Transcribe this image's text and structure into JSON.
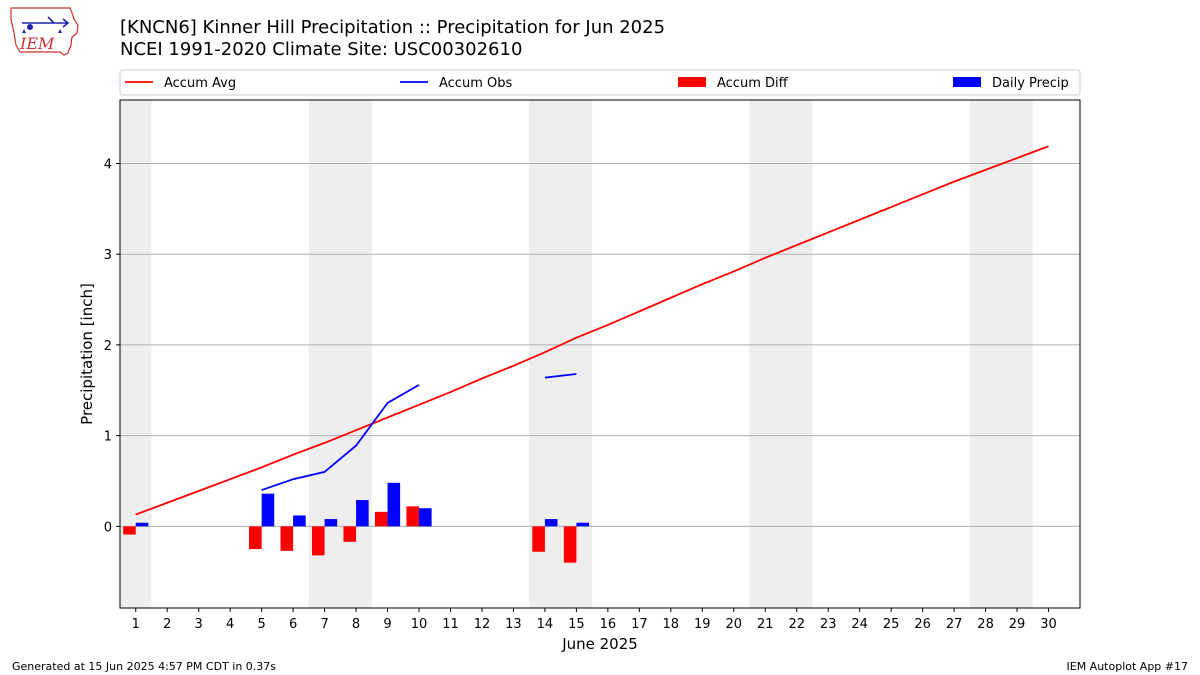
{
  "header": {
    "title": "[KNCN6] Kinner Hill Precipitation :: Precipitation for Jun 2025",
    "subtitle": "NCEI 1991-2020 Climate Site: USC00302610"
  },
  "logo": {
    "text": "IEM",
    "icon": "iem-iowa-weather-logo"
  },
  "footer": {
    "generated": "Generated at 15 Jun 2025 4:57 PM CDT in 0.37s",
    "app": "IEM Autoplot App #17"
  },
  "chart_data": {
    "type": "bar",
    "xlabel": "June 2025",
    "ylabel": "Precipitation [inch]",
    "xlim": [
      0.5,
      31.0
    ],
    "ylim": [
      -0.9,
      4.7
    ],
    "x_ticks": [
      1,
      2,
      3,
      4,
      5,
      6,
      7,
      8,
      9,
      10,
      11,
      12,
      13,
      14,
      15,
      16,
      17,
      18,
      19,
      20,
      21,
      22,
      23,
      24,
      25,
      26,
      27,
      28,
      29,
      30
    ],
    "y_ticks": [
      0,
      1,
      2,
      3,
      4
    ],
    "grid": "horizontal",
    "legend_position": "top",
    "weekend_shading": [
      [
        0.5,
        1.5
      ],
      [
        6.5,
        8.5
      ],
      [
        13.5,
        15.5
      ],
      [
        20.5,
        22.5
      ],
      [
        27.5,
        29.5
      ]
    ],
    "colors": {
      "accum_avg": "#ff0000",
      "accum_obs": "#0000ff",
      "accum_diff": "#ff0000",
      "daily_precip": "#0000ff",
      "weekend": "#eeeeee",
      "grid": "#b0b0b0"
    },
    "series": [
      {
        "name": "Accum Avg",
        "kind": "line",
        "x": [
          1,
          2,
          3,
          4,
          5,
          6,
          7,
          8,
          9,
          10,
          11,
          12,
          13,
          14,
          15,
          16,
          17,
          18,
          19,
          20,
          21,
          22,
          23,
          24,
          25,
          26,
          27,
          28,
          29,
          30
        ],
        "values": [
          0.13,
          0.26,
          0.39,
          0.52,
          0.65,
          0.79,
          0.92,
          1.06,
          1.2,
          1.34,
          1.48,
          1.63,
          1.77,
          1.92,
          2.08,
          2.22,
          2.37,
          2.52,
          2.67,
          2.81,
          2.96,
          3.1,
          3.24,
          3.38,
          3.52,
          3.66,
          3.8,
          3.93,
          4.06,
          4.19
        ]
      },
      {
        "name": "Accum Obs",
        "kind": "line",
        "x": [
          5,
          6,
          7,
          8,
          9,
          10,
          14,
          15
        ],
        "values": [
          0.4,
          0.52,
          0.6,
          0.89,
          1.36,
          1.56,
          1.64,
          1.68
        ],
        "segments": [
          [
            5,
            10
          ],
          [
            14,
            15
          ]
        ]
      },
      {
        "name": "Accum Diff",
        "kind": "bar",
        "x": [
          1,
          5,
          6,
          7,
          8,
          9,
          10,
          14,
          15
        ],
        "values": [
          -0.09,
          -0.25,
          -0.27,
          -0.32,
          -0.17,
          0.16,
          0.22,
          -0.28,
          -0.4
        ]
      },
      {
        "name": "Daily Precip",
        "kind": "bar",
        "x": [
          1,
          5,
          6,
          7,
          8,
          9,
          10,
          14,
          15
        ],
        "values": [
          0.04,
          0.36,
          0.12,
          0.08,
          0.29,
          0.48,
          0.2,
          0.08,
          0.04
        ]
      }
    ]
  }
}
